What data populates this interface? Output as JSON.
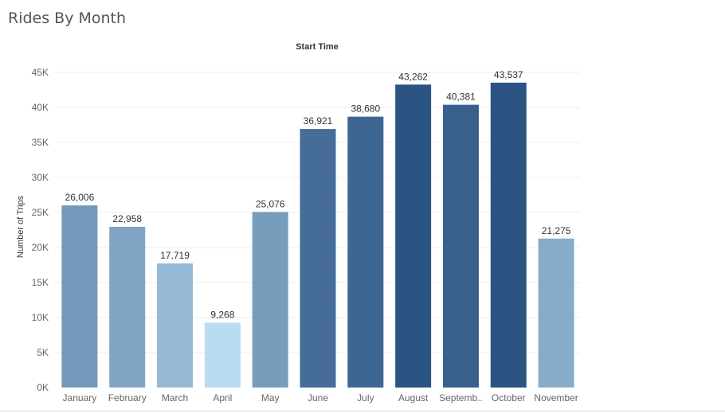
{
  "page": {
    "title": "Rides By Month"
  },
  "chart_data": {
    "type": "bar",
    "title": "Rides By Month",
    "column_header": "Start Time",
    "xlabel": "",
    "ylabel": "Number of Trips",
    "ylim": [
      0,
      45000
    ],
    "yticks": [
      0,
      5000,
      10000,
      15000,
      20000,
      25000,
      30000,
      35000,
      40000,
      45000
    ],
    "ytick_labels": [
      "0K",
      "5K",
      "10K",
      "15K",
      "20K",
      "25K",
      "30K",
      "35K",
      "40K",
      "45K"
    ],
    "grid": true,
    "categories": [
      "January",
      "February",
      "March",
      "April",
      "May",
      "June",
      "July",
      "August",
      "Septemb..",
      "October",
      "November"
    ],
    "values": [
      26006,
      22958,
      17719,
      9268,
      25076,
      36921,
      38680,
      43262,
      40381,
      43537,
      21275
    ],
    "value_labels": [
      "26,006",
      "22,958",
      "17,719",
      "9,268",
      "25,076",
      "36,921",
      "38,680",
      "43,262",
      "40,381",
      "43,537",
      "21,275"
    ],
    "colors": {
      "scale_low": "#b9dcf0",
      "scale_high": "#2a5382",
      "gridline": "#eeeeee",
      "axis_text": "#666666",
      "label_text": "#333333"
    }
  }
}
